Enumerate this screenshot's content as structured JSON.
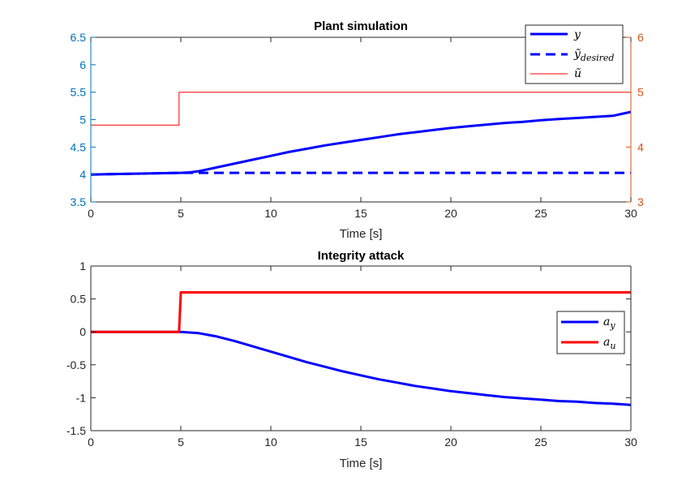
{
  "chart_data": [
    {
      "type": "line",
      "title": "Plant simulation",
      "xlabel": "Time [s]",
      "xlim": [
        0,
        30
      ],
      "x_ticks": [
        "0",
        "5",
        "10",
        "15",
        "20",
        "25",
        "30"
      ],
      "ylim_left": [
        3.5,
        6.5
      ],
      "y_ticks_left": [
        "3.5",
        "4",
        "4.5",
        "5",
        "5.5",
        "6",
        "6.5"
      ],
      "ylim_right": [
        3,
        6
      ],
      "y_ticks_right": [
        "3",
        "4",
        "5",
        "6"
      ],
      "left_axis_color": "#0072BD",
      "right_axis_color": "#D95319",
      "legend_placement": "top-right",
      "series": [
        {
          "name": "y",
          "axis": "left",
          "color": "#0000FF",
          "style": "solid",
          "x": [
            0,
            5,
            5.5,
            6,
            7,
            8,
            9,
            10,
            11,
            12,
            13,
            14,
            15,
            16,
            17,
            18,
            19,
            20,
            21,
            22,
            23,
            24,
            25,
            26,
            27,
            28,
            29,
            30
          ],
          "y": [
            4.0,
            4.03,
            4.04,
            4.06,
            4.13,
            4.2,
            4.27,
            4.34,
            4.41,
            4.47,
            4.53,
            4.58,
            4.63,
            4.68,
            4.73,
            4.77,
            4.81,
            4.85,
            4.88,
            4.91,
            4.94,
            4.96,
            4.99,
            5.01,
            5.03,
            5.05,
            5.07,
            5.14
          ]
        },
        {
          "name": "ỹ_desired",
          "axis": "left",
          "color": "#0000FF",
          "style": "dashed",
          "x": [
            0,
            5,
            30
          ],
          "y": [
            4.0,
            4.03,
            4.03
          ]
        },
        {
          "name": "ũ",
          "axis": "right",
          "color": "#FF0000",
          "style": "solid-thin",
          "x": [
            0,
            4.9,
            4.9,
            30
          ],
          "y": [
            4.4,
            4.4,
            5.0,
            5.0
          ]
        }
      ]
    },
    {
      "type": "line",
      "title": "Integrity attack",
      "xlabel": "Time [s]",
      "xlim": [
        0,
        30
      ],
      "x_ticks": [
        "0",
        "5",
        "10",
        "15",
        "20",
        "25",
        "30"
      ],
      "ylim": [
        -1.5,
        1
      ],
      "y_ticks": [
        "-1.5",
        "-1",
        "-0.5",
        "0",
        "0.5",
        "1"
      ],
      "legend_placement": "right",
      "series": [
        {
          "name": "a_y",
          "color": "#0000FF",
          "x": [
            0,
            5,
            6,
            7,
            8,
            9,
            10,
            11,
            12,
            13,
            14,
            15,
            16,
            17,
            18,
            19,
            20,
            21,
            22,
            23,
            24,
            25,
            26,
            27,
            28,
            29,
            30
          ],
          "y": [
            0,
            0,
            -0.02,
            -0.07,
            -0.14,
            -0.22,
            -0.3,
            -0.38,
            -0.46,
            -0.53,
            -0.6,
            -0.66,
            -0.72,
            -0.77,
            -0.82,
            -0.86,
            -0.9,
            -0.93,
            -0.96,
            -0.99,
            -1.01,
            -1.03,
            -1.05,
            -1.06,
            -1.08,
            -1.09,
            -1.11
          ]
        },
        {
          "name": "a_u",
          "color": "#FF0000",
          "x": [
            0,
            4.9,
            5.0,
            30
          ],
          "y": [
            0,
            0,
            0.6,
            0.6
          ]
        }
      ]
    }
  ],
  "legend1": {
    "y_main": "y",
    "yd_main": "ỹ",
    "yd_sub": "desired",
    "u_main": "ũ"
  },
  "legend2": {
    "ay_main": "a",
    "ay_sub": "y",
    "au_main": "a",
    "au_sub": "u"
  }
}
